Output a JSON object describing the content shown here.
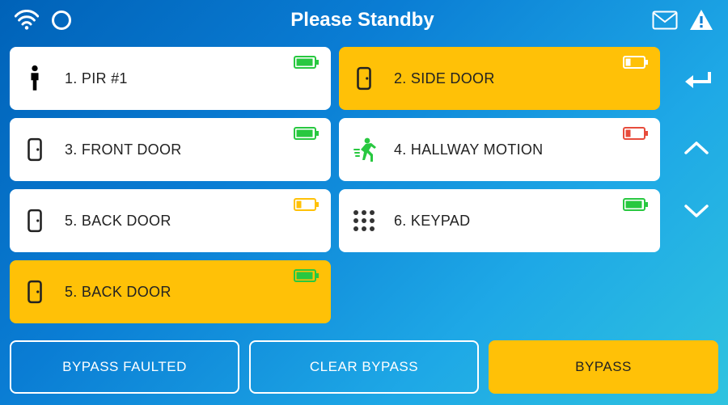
{
  "header": {
    "title": "Please Standby"
  },
  "colors": {
    "card_white": "#ffffff",
    "card_yellow": "#ffc107",
    "battery_green": "#28c840",
    "battery_yellow": "#ffc107",
    "battery_red": "#e74c3c",
    "battery_white": "#ffffff",
    "text_dark": "#222222",
    "bg_gradient_from": "#0062b8",
    "bg_gradient_to": "#2fc3df"
  },
  "zones": [
    {
      "index": 1,
      "label": "1. PIR #1",
      "icon": "person",
      "icon_color": "#000000",
      "bg": "white",
      "battery_level": "full",
      "battery_color": "#28c840"
    },
    {
      "index": 2,
      "label": "2. SIDE DOOR",
      "icon": "door",
      "icon_color": "#222222",
      "bg": "yellow",
      "battery_level": "low",
      "battery_color": "#ffffff"
    },
    {
      "index": 3,
      "label": "3. FRONT DOOR",
      "icon": "door",
      "icon_color": "#222222",
      "bg": "white",
      "battery_level": "full",
      "battery_color": "#28c840"
    },
    {
      "index": 4,
      "label": "4. HALLWAY MOTION",
      "icon": "motion",
      "icon_color": "#28c840",
      "bg": "white",
      "battery_level": "low",
      "battery_color": "#e74c3c"
    },
    {
      "index": 5,
      "label": "5. BACK DOOR",
      "icon": "door",
      "icon_color": "#222222",
      "bg": "white",
      "battery_level": "low",
      "battery_color": "#ffc107"
    },
    {
      "index": 6,
      "label": "6. KEYPAD",
      "icon": "keypad",
      "icon_color": "#333333",
      "bg": "white",
      "battery_level": "full",
      "battery_color": "#28c840"
    },
    {
      "index": 7,
      "label": "5. BACK DOOR",
      "icon": "door",
      "icon_color": "#222222",
      "bg": "yellow",
      "battery_level": "full",
      "battery_color": "#28c840"
    }
  ],
  "actions": {
    "bypass_faulted": "BYPASS FAULTED",
    "clear_bypass": "CLEAR BYPASS",
    "bypass": "BYPASS"
  }
}
